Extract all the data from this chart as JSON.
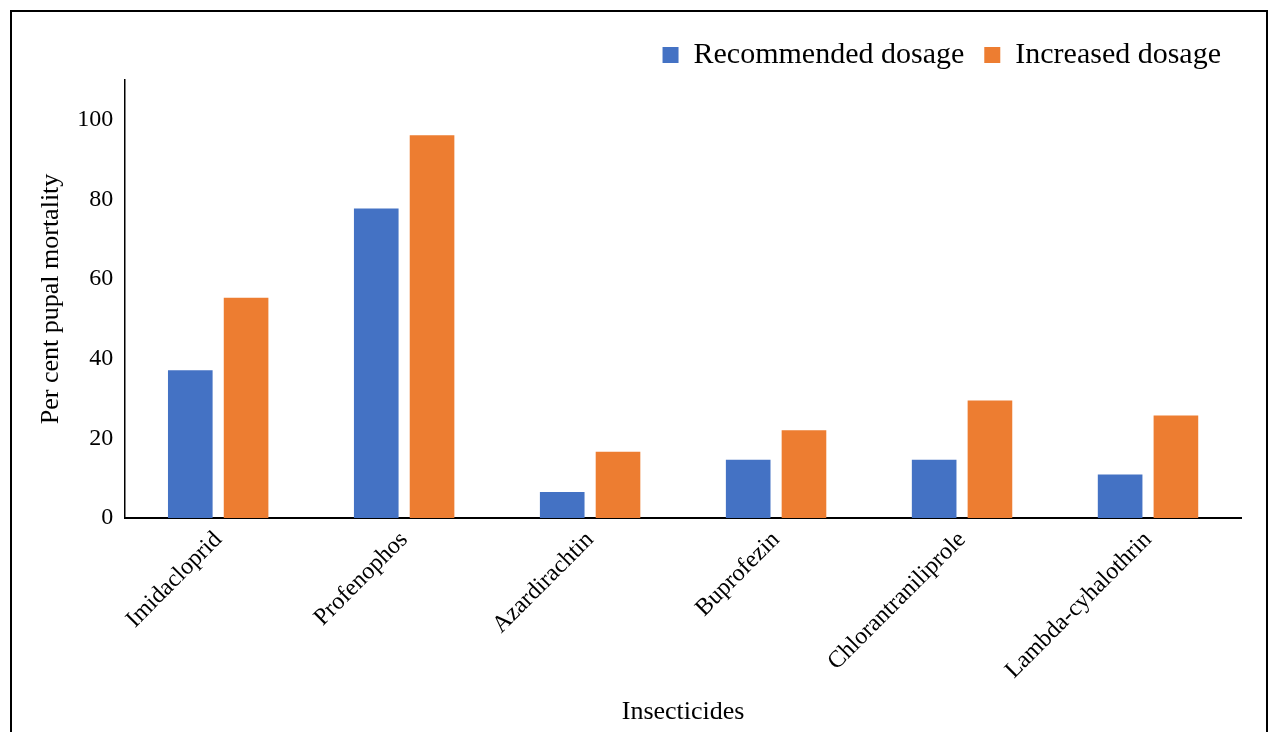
{
  "chart_data": {
    "type": "bar",
    "xlabel": "Insecticides",
    "ylabel": "Per cent pupal mortality",
    "categories": [
      "Imidacloprid",
      "Profenophos",
      "Azardirachtin",
      "Buprofezin",
      "Chlorantraniliprole",
      "Lambda-cyhalothrin"
    ],
    "series": [
      {
        "name": "Recommended dosage",
        "color": "#4472c4",
        "values": [
          37.1,
          77.7,
          6.5,
          14.6,
          14.6,
          10.9
        ]
      },
      {
        "name": "Increased dosage",
        "color": "#ed7d31",
        "values": [
          55.3,
          96.1,
          16.6,
          22.0,
          29.5,
          25.7
        ]
      }
    ],
    "ylim": [
      0,
      110
    ],
    "yticks": [
      0,
      20,
      40,
      60,
      80,
      100
    ],
    "grid": false,
    "legend": "top right"
  }
}
